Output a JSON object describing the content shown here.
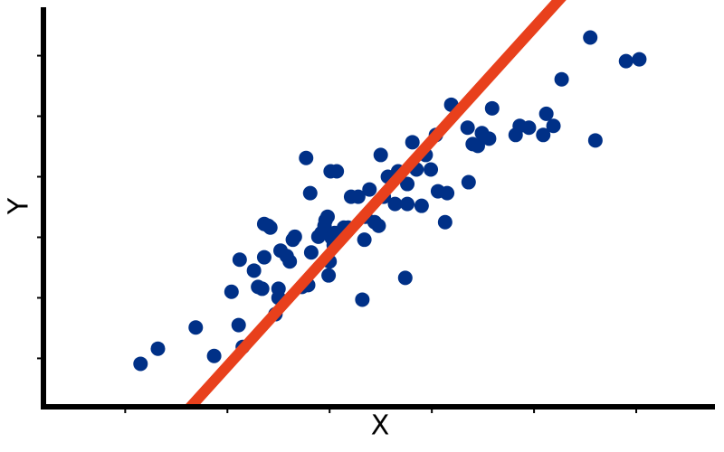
{
  "chart_data": {
    "type": "scatter",
    "x_label": "X",
    "y_label": "Y",
    "xlim": [
      0.2,
      6.77
    ],
    "ylim": [
      0.2,
      6.8
    ],
    "xticks": [
      1,
      2,
      3,
      4,
      5,
      6
    ],
    "yticks": [
      1,
      2,
      3,
      4,
      5,
      6
    ],
    "grid": false,
    "series": [
      {
        "color": "#003087",
        "x": [
          1.15,
          1.32,
          1.69,
          1.87,
          2.11,
          2.15,
          2.04,
          2.12,
          2.26,
          2.3,
          2.34,
          2.36,
          2.36,
          2.42,
          2.4,
          2.47,
          2.5,
          2.5,
          2.52,
          2.58,
          2.61,
          2.64,
          2.66,
          2.73,
          2.79,
          2.77,
          2.81,
          2.82,
          2.89,
          2.92,
          2.95,
          2.96,
          2.98,
          2.99,
          3.0,
          3.02,
          3.04,
          3.05,
          3.01,
          3.07,
          3.1,
          3.14,
          3.18,
          3.21,
          3.28,
          3.32,
          3.34,
          3.35,
          3.39,
          3.44,
          3.48,
          3.5,
          3.53,
          3.57,
          3.64,
          3.67,
          3.74,
          3.76,
          3.76,
          3.81,
          3.85,
          3.9,
          3.94,
          3.99,
          4.04,
          4.06,
          4.13,
          4.15,
          4.19,
          4.35,
          4.36,
          4.4,
          4.45,
          4.49,
          4.56,
          4.59,
          4.82,
          4.86,
          4.95,
          5.09,
          5.12,
          5.19,
          5.27,
          5.55,
          5.6,
          5.9,
          6.03
        ],
        "values": [
          0.91,
          1.16,
          1.51,
          1.04,
          1.55,
          1.19,
          2.1,
          2.63,
          2.45,
          2.18,
          2.15,
          2.67,
          3.22,
          3.16,
          3.19,
          1.73,
          2.15,
          2.0,
          2.78,
          2.69,
          2.6,
          2.96,
          3.01,
          2.18,
          2.21,
          4.31,
          3.73,
          2.75,
          3.01,
          3.07,
          3.19,
          3.28,
          3.34,
          2.37,
          2.6,
          2.99,
          2.87,
          3.07,
          4.09,
          4.09,
          3.01,
          3.16,
          3.16,
          3.67,
          3.67,
          1.97,
          2.96,
          3.34,
          3.79,
          3.25,
          3.19,
          4.36,
          3.67,
          4.0,
          3.55,
          4.09,
          2.33,
          3.55,
          3.88,
          4.57,
          4.12,
          3.52,
          4.36,
          4.12,
          4.69,
          3.76,
          3.25,
          3.73,
          5.19,
          4.81,
          3.91,
          4.54,
          4.51,
          4.72,
          4.63,
          5.13,
          4.69,
          4.84,
          4.81,
          4.69,
          5.04,
          4.84,
          5.61,
          6.3,
          4.6,
          5.91,
          5.94
        ]
      }
    ],
    "fit_line": {
      "color": "#e8401c",
      "x": [
        1.64,
        5.18
      ],
      "values": [
        0.2,
        6.8
      ]
    }
  }
}
